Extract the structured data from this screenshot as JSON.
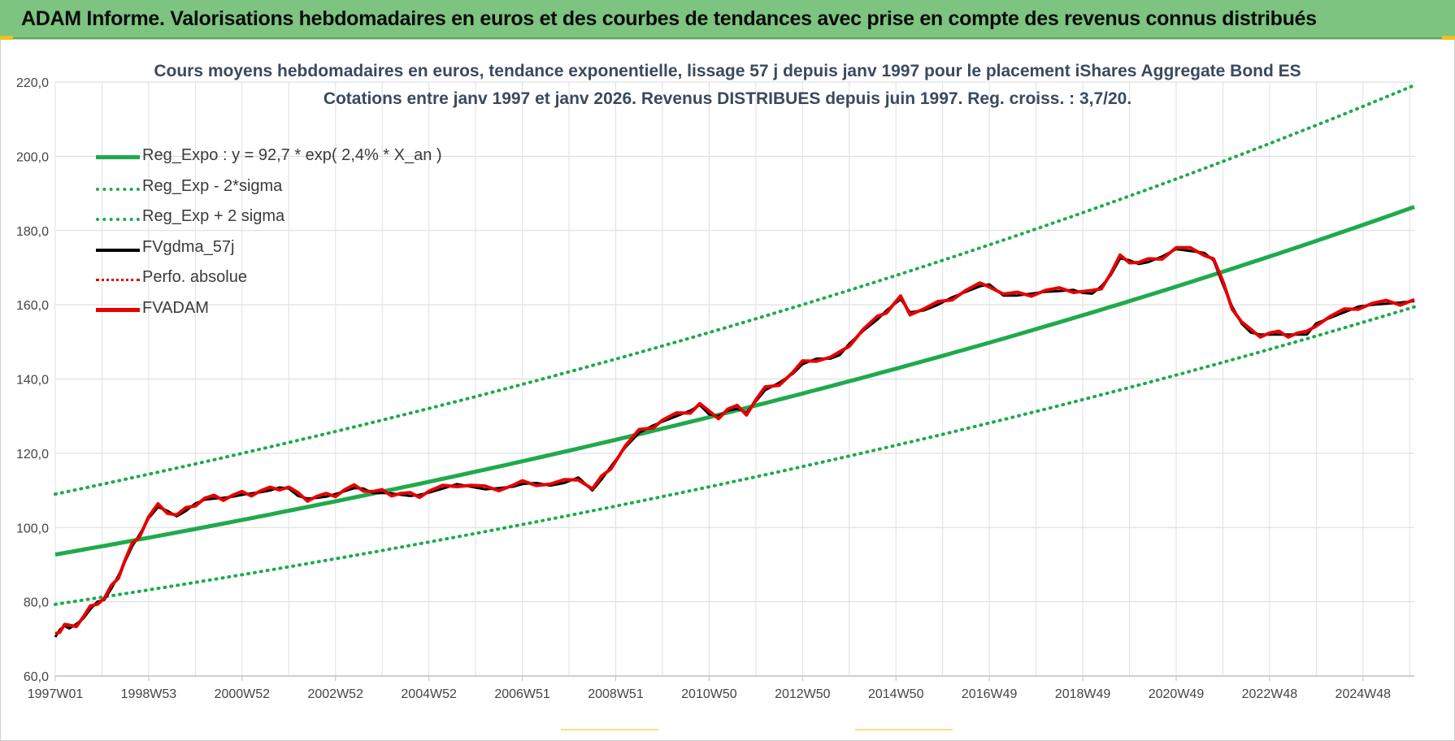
{
  "banner": {
    "title": "ADAM Informe. Valorisations hebdomadaires en euros et des courbes de tendances avec prise en compte des revenus connus distribués"
  },
  "chart_data": {
    "type": "line",
    "title": "Cours moyens hebdomadaires en euros, tendance exponentielle, lissage 57 j depuis janv 1997  pour le placement iShares Aggregate Bond ES",
    "subtitle": "Cotations entre janv 1997 et janv 2026. Revenus DISTRIBUES depuis juin 1997. Reg.  croiss. : 3,7/20.",
    "xlabel": "",
    "ylabel": "",
    "ylim": [
      60,
      220
    ],
    "xlim": [
      1997.0,
      2026.1
    ],
    "yticks": [
      "60,0",
      "80,0",
      "100,0",
      "120,0",
      "140,0",
      "160,0",
      "180,0",
      "200,0",
      "220,0"
    ],
    "xticks": [
      {
        "label": "1997W01",
        "x": 1997.0
      },
      {
        "label": "1998W53",
        "x": 1999.0
      },
      {
        "label": "2000W52",
        "x": 2001.0
      },
      {
        "label": "2002W52",
        "x": 2003.0
      },
      {
        "label": "2004W52",
        "x": 2005.0
      },
      {
        "label": "2006W51",
        "x": 2007.0
      },
      {
        "label": "2008W51",
        "x": 2009.0
      },
      {
        "label": "2010W50",
        "x": 2011.0
      },
      {
        "label": "2012W50",
        "x": 2013.0
      },
      {
        "label": "2014W50",
        "x": 2015.0
      },
      {
        "label": "2016W49",
        "x": 2017.0
      },
      {
        "label": "2018W49",
        "x": 2019.0
      },
      {
        "label": "2020W49",
        "x": 2021.0
      },
      {
        "label": "2022W48",
        "x": 2023.0
      },
      {
        "label": "2024W48",
        "x": 2025.0
      }
    ],
    "grid": true,
    "legend_position": "top-left",
    "regression": {
      "base": 92.7,
      "rate": 0.024,
      "sigma_band_low": 79.3,
      "sigma_band_high": 109.0
    },
    "series": [
      {
        "name": "Reg_Expo : y = 92,7 * exp( 2,4% *  X_an )",
        "color": "#1faa4c",
        "style": "solid"
      },
      {
        "name": "Reg_Exp - 2*sigma",
        "color": "#1faa4c",
        "style": "dotted"
      },
      {
        "name": "Reg_Exp + 2 sigma",
        "color": "#1faa4c",
        "style": "dotted"
      },
      {
        "name": "FVgdma_57j",
        "color": "#000000",
        "style": "solid"
      },
      {
        "name": "Perfo. absolue",
        "color": "#e00000",
        "style": "dotted"
      },
      {
        "name": "FVADAM",
        "color": "#e60000",
        "style": "solid",
        "x": [
          1997.0,
          1997.1,
          1997.2,
          1997.3,
          1997.45,
          1997.6,
          1997.75,
          1997.9,
          1998.05,
          1998.2,
          1998.35,
          1998.5,
          1998.65,
          1998.8,
          1999.0,
          1999.2,
          1999.4,
          1999.6,
          1999.8,
          2000.0,
          2000.2,
          2000.4,
          2000.6,
          2000.8,
          2001.0,
          2001.2,
          2001.4,
          2001.6,
          2001.8,
          2002.0,
          2002.2,
          2002.4,
          2002.6,
          2002.8,
          2003.0,
          2003.2,
          2003.4,
          2003.6,
          2003.8,
          2004.0,
          2004.2,
          2004.4,
          2004.6,
          2004.8,
          2005.0,
          2005.3,
          2005.6,
          2005.9,
          2006.2,
          2006.5,
          2006.8,
          2007.0,
          2007.3,
          2007.6,
          2007.9,
          2008.2,
          2008.5,
          2008.7,
          2008.9,
          2009.2,
          2009.5,
          2009.8,
          2010.0,
          2010.3,
          2010.6,
          2010.8,
          2011.0,
          2011.2,
          2011.4,
          2011.6,
          2011.8,
          2012.0,
          2012.2,
          2012.5,
          2012.8,
          2013.0,
          2013.3,
          2013.6,
          2013.8,
          2014.0,
          2014.3,
          2014.6,
          2014.8,
          2015.0,
          2015.1,
          2015.3,
          2015.6,
          2015.9,
          2016.2,
          2016.5,
          2016.8,
          2017.0,
          2017.3,
          2017.6,
          2017.9,
          2018.2,
          2018.5,
          2018.8,
          2019.0,
          2019.2,
          2019.4,
          2019.6,
          2019.8,
          2020.0,
          2020.2,
          2020.4,
          2020.7,
          2021.0,
          2021.3,
          2021.6,
          2021.8,
          2022.0,
          2022.2,
          2022.4,
          2022.6,
          2022.8,
          2023.0,
          2023.2,
          2023.4,
          2023.6,
          2023.8,
          2024.0,
          2024.3,
          2024.6,
          2024.9,
          2025.2,
          2025.5,
          2025.8,
          2026.1
        ],
        "values": [
          70.5,
          72.5,
          73.5,
          72.8,
          74.0,
          75.5,
          78.0,
          80.0,
          80.5,
          83.5,
          87.0,
          91.0,
          95.0,
          98.0,
          102.5,
          105.5,
          104.5,
          103.0,
          104.5,
          106.5,
          107.5,
          107.8,
          108.0,
          108.3,
          108.8,
          109.2,
          109.5,
          110.0,
          110.8,
          110.5,
          108.5,
          107.8,
          108.0,
          108.3,
          109.0,
          109.8,
          110.6,
          110.5,
          109.3,
          109.3,
          109.2,
          108.8,
          108.5,
          108.8,
          109.4,
          110.5,
          111.7,
          111.0,
          110.3,
          110.6,
          111.0,
          111.7,
          112.0,
          111.3,
          112.0,
          113.5,
          110.0,
          113.0,
          116.5,
          121.5,
          125.5,
          127.5,
          128.5,
          130.0,
          131.5,
          133.0,
          130.5,
          130.0,
          131.5,
          132.0,
          131.0,
          134.0,
          137.0,
          139.0,
          141.5,
          144.0,
          145.5,
          145.5,
          146.5,
          149.5,
          153.0,
          156.0,
          158.5,
          160.5,
          161.5,
          158.0,
          158.5,
          160.0,
          162.0,
          163.5,
          165.0,
          165.5,
          162.5,
          162.5,
          163.0,
          163.5,
          163.7,
          164.0,
          163.2,
          163.0,
          165.0,
          168.0,
          172.5,
          172.0,
          171.0,
          171.5,
          173.0,
          175.0,
          174.5,
          174.0,
          172.0,
          165.5,
          159.5,
          155.0,
          152.5,
          152.0,
          152.0,
          152.0,
          152.0,
          152.0,
          152.0,
          155.0,
          156.5,
          158.0,
          159.5,
          160.0,
          160.3,
          160.6,
          161.0
        ]
      }
    ]
  }
}
